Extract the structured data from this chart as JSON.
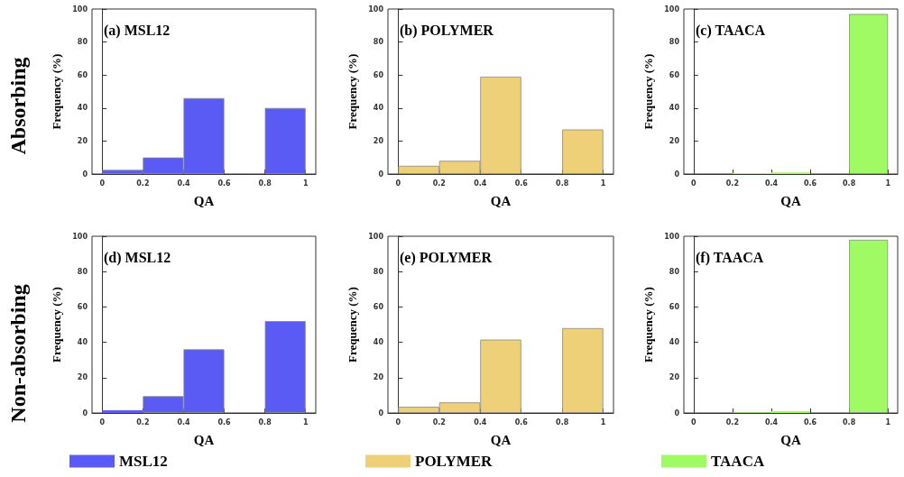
{
  "chart_data": [
    {
      "type": "histogram",
      "title": "(a) MSL12",
      "xlabel": "QA",
      "ylabel": "Frequency (%)",
      "annotations": [
        "Absorbing"
      ],
      "bins": [
        0,
        0.2,
        0.4,
        0.6,
        0.8,
        1
      ],
      "xlim": [
        -0.05,
        1.05
      ],
      "xticks": [
        0,
        0.2,
        0.4,
        0.6,
        0.8,
        1
      ],
      "ylim": [
        0,
        100
      ],
      "yticks": [
        0,
        20,
        40,
        60,
        80,
        100
      ],
      "series": [
        {
          "color": "#5a5af5",
          "values": [
            2.5,
            10,
            46,
            0,
            40
          ]
        }
      ]
    },
    {
      "type": "histogram",
      "title": "(b) POLYMER",
      "xlabel": "QA",
      "ylabel": "Frequency (%)",
      "bins": [
        0,
        0.2,
        0.4,
        0.6,
        0.8,
        1
      ],
      "xlim": [
        -0.05,
        1.05
      ],
      "xticks": [
        0,
        0.2,
        0.4,
        0.6,
        0.8,
        1
      ],
      "ylim": [
        0,
        100
      ],
      "yticks": [
        0,
        20,
        40,
        60,
        80,
        100
      ],
      "series": [
        {
          "color": "#eed078",
          "values": [
            5,
            8,
            59,
            0,
            27
          ]
        }
      ]
    },
    {
      "type": "histogram",
      "title": "(c) TAACA",
      "xlabel": "QA",
      "ylabel": "Frequency (%)",
      "bins": [
        0,
        0.2,
        0.4,
        0.6,
        0.8,
        1
      ],
      "xlim": [
        -0.05,
        1.05
      ],
      "xticks": [
        0,
        0.2,
        0.4,
        0.6,
        0.8,
        1
      ],
      "ylim": [
        0,
        100
      ],
      "yticks": [
        0,
        20,
        40,
        60,
        80,
        100
      ],
      "series": [
        {
          "color": "#a0fa64",
          "values": [
            0,
            0.5,
            1,
            0,
            97
          ]
        }
      ]
    },
    {
      "type": "histogram",
      "title": "(d) MSL12",
      "xlabel": "QA",
      "ylabel": "Frequency (%)",
      "annotations": [
        "Non-absorbing"
      ],
      "bins": [
        0,
        0.2,
        0.4,
        0.6,
        0.8,
        1
      ],
      "xlim": [
        -0.05,
        1.05
      ],
      "xticks": [
        0,
        0.2,
        0.4,
        0.6,
        0.8,
        1
      ],
      "ylim": [
        0,
        100
      ],
      "yticks": [
        0,
        20,
        40,
        60,
        80,
        100
      ],
      "legend": "bottom",
      "series": [
        {
          "name": "MSL12",
          "color": "#5a5af5",
          "values": [
            1.5,
            9.5,
            36,
            0,
            52
          ]
        }
      ]
    },
    {
      "type": "histogram",
      "title": "(e) POLYMER",
      "xlabel": "QA",
      "ylabel": "Frequency (%)",
      "bins": [
        0,
        0.2,
        0.4,
        0.6,
        0.8,
        1
      ],
      "xlim": [
        -0.05,
        1.05
      ],
      "xticks": [
        0,
        0.2,
        0.4,
        0.6,
        0.8,
        1
      ],
      "ylim": [
        0,
        100
      ],
      "yticks": [
        0,
        20,
        40,
        60,
        80,
        100
      ],
      "legend": "bottom",
      "series": [
        {
          "name": "POLYMER",
          "color": "#eed078",
          "values": [
            3.5,
            6,
            41.5,
            0,
            48
          ]
        }
      ]
    },
    {
      "type": "histogram",
      "title": "(f) TAACA",
      "xlabel": "QA",
      "ylabel": "Frequency (%)",
      "bins": [
        0,
        0.2,
        0.4,
        0.6,
        0.8,
        1
      ],
      "xlim": [
        -0.05,
        1.05
      ],
      "xticks": [
        0,
        0.2,
        0.4,
        0.6,
        0.8,
        1
      ],
      "ylim": [
        0,
        100
      ],
      "yticks": [
        0,
        20,
        40,
        60,
        80,
        100
      ],
      "legend": "bottom",
      "series": [
        {
          "name": "TAACA",
          "color": "#a0fa64",
          "values": [
            0,
            0.3,
            1,
            0,
            98
          ]
        }
      ]
    }
  ]
}
